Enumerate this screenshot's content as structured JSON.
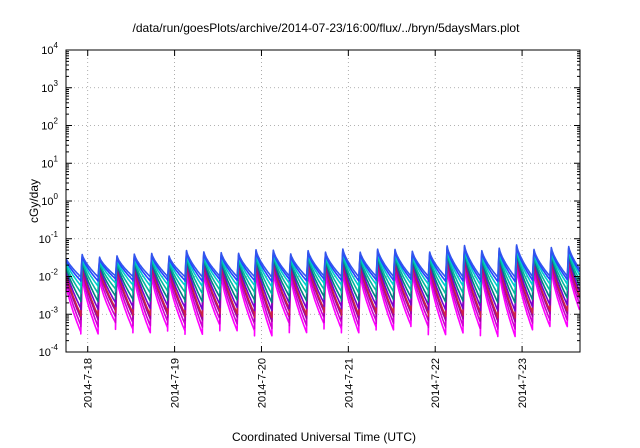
{
  "chart_data": {
    "type": "line",
    "title": "/data/run/goesPlots/archive/2014-07-23/16:00/flux/../bryn/5daysMars.plot",
    "xlabel": "Coordinated Universal Time (UTC)",
    "ylabel": "cGy/day",
    "y_scale": "log",
    "ylim": [
      0.0001,
      10000
    ],
    "y_ticks": [
      {
        "base": "10",
        "exp": "-4"
      },
      {
        "base": "10",
        "exp": "-3"
      },
      {
        "base": "10",
        "exp": "-2"
      },
      {
        "base": "10",
        "exp": "-1"
      },
      {
        "base": "10",
        "exp": "0"
      },
      {
        "base": "10",
        "exp": "1"
      },
      {
        "base": "10",
        "exp": "2"
      },
      {
        "base": "10",
        "exp": "3"
      },
      {
        "base": "10",
        "exp": "4"
      }
    ],
    "x_ticks": [
      "2014-7-18",
      "2014-7-19",
      "2014-7-20",
      "2014-7-21",
      "2014-7-22",
      "2014-7-23"
    ],
    "xlim": [
      "2014-07-17T18:00",
      "2014-07-23T16:00"
    ],
    "grid": true,
    "oscillation_period_hours": 4.8,
    "series": [
      {
        "color": "#ff00ff",
        "peak": 0.014,
        "trough": 0.0004
      },
      {
        "color": "#d000d0",
        "peak": 0.02,
        "trough": 0.0006
      },
      {
        "color": "#a000a0",
        "peak": 0.026,
        "trough": 0.0009
      },
      {
        "color": "#cc2244",
        "peak": 0.028,
        "trough": 0.0011
      },
      {
        "color": "#7700cc",
        "peak": 0.032,
        "trough": 0.0016
      },
      {
        "color": "#008080",
        "peak": 0.035,
        "trough": 0.0025
      },
      {
        "color": "#00b8a0",
        "peak": 0.038,
        "trough": 0.004
      },
      {
        "color": "#00cccc",
        "peak": 0.042,
        "trough": 0.006
      },
      {
        "color": "#2244ff",
        "peak": 0.046,
        "trough": 0.008
      },
      {
        "color": "#3355ee",
        "peak": 0.05,
        "trough": 0.01
      }
    ]
  }
}
